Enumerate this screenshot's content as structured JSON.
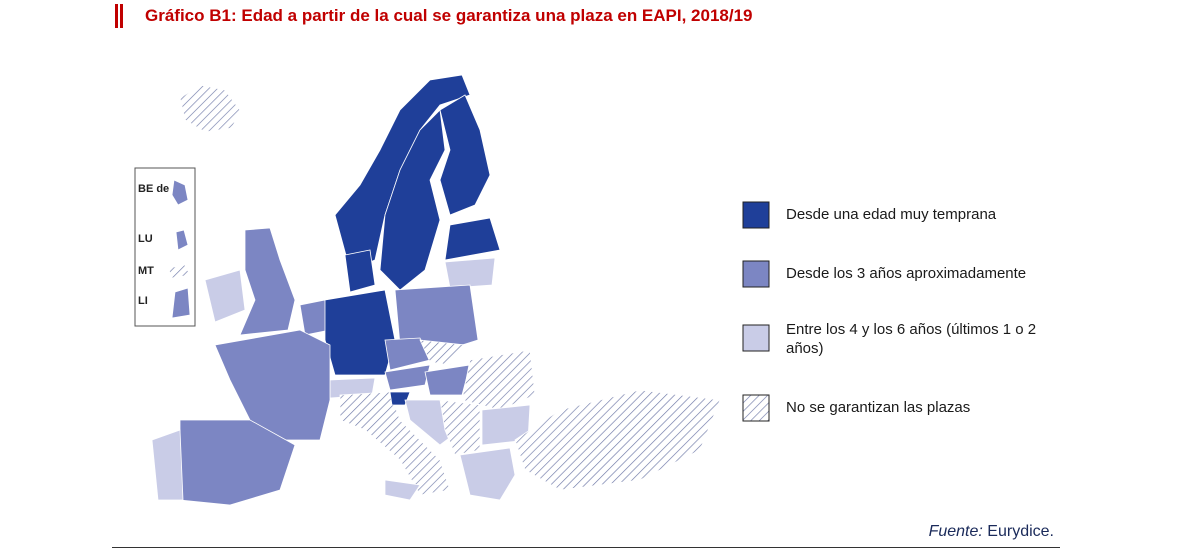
{
  "header": {
    "title": "Gráfico B1: Edad a partir de la cual se garantiza una plaza en EAPI, 2018/19"
  },
  "inset": {
    "labels": [
      "BE de",
      "LU",
      "MT",
      "LI"
    ]
  },
  "legend": {
    "items": [
      {
        "label": "Desde una edad muy temprana"
      },
      {
        "label": "Desde los 3 años aproximadamente"
      },
      {
        "label": "Entre los 4 y los 6 años (últimos 1 o 2 años)"
      },
      {
        "label": "No se garantizan las plazas"
      }
    ]
  },
  "source": {
    "prefix": "Fuente:",
    "name": "Eurydice."
  }
}
